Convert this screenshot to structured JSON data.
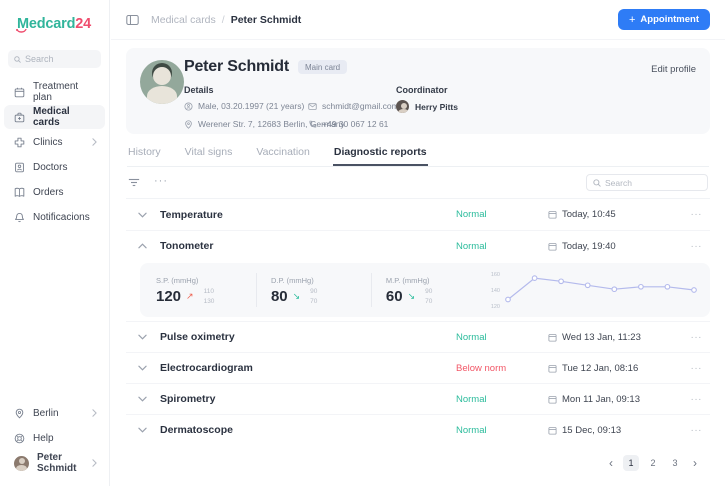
{
  "logo": {
    "m": "M",
    "mid": "edcard",
    "num": "24"
  },
  "sidebar": {
    "search_placeholder": "Search",
    "items": [
      {
        "label": "Treatment plan",
        "icon": "calendar-icon",
        "active": false,
        "has_chevron": false
      },
      {
        "label": "Medical cards",
        "icon": "medical-bag-icon",
        "active": true,
        "has_chevron": false
      },
      {
        "label": "Clinics",
        "icon": "clinic-cross-icon",
        "active": false,
        "has_chevron": true
      },
      {
        "label": "Doctors",
        "icon": "doctor-badge-icon",
        "active": false,
        "has_chevron": false
      },
      {
        "label": "Orders",
        "icon": "orders-book-icon",
        "active": false,
        "has_chevron": false
      },
      {
        "label": "Notificacions",
        "icon": "bell-icon",
        "active": false,
        "has_chevron": false
      }
    ],
    "footer_items": [
      {
        "label": "Berlin",
        "icon": "location-pin-icon",
        "has_chevron": true
      },
      {
        "label": "Help",
        "icon": "help-icon",
        "has_chevron": false
      },
      {
        "label": "Peter Schmidt",
        "icon": "user-avatar",
        "has_chevron": true
      }
    ]
  },
  "header": {
    "breadcrumb": [
      "Medical cards",
      "Peter Schmidt"
    ],
    "breadcrumb_separator": "/",
    "appointment_plus": "+",
    "appointment_label": "Appointment"
  },
  "patient": {
    "name": "Peter Schmidt",
    "badge": "Main card",
    "edit_label": "Edit profile",
    "details_label": "Details",
    "gender_dob": "Male, 03.20.1997 (21 years)",
    "email": "schmidt@gmail.com",
    "address": "Werener Str. 7, 12683 Berlin, Germany",
    "phone": "+49 30 067 12 61",
    "coordinator_label": "Coordinator",
    "coordinator_name": "Herry Pitts"
  },
  "tabs": [
    {
      "label": "History",
      "active": false
    },
    {
      "label": "Vital signs",
      "active": false
    },
    {
      "label": "Vaccination",
      "active": false
    },
    {
      "label": "Diagnostic reports",
      "active": true
    }
  ],
  "toolbar": {
    "search_placeholder": "Search"
  },
  "ui": {
    "ellipsis": "···",
    "prev": "‹",
    "next": "›"
  },
  "reports": [
    {
      "name": "Temperature",
      "status": "Normal",
      "status_type": "normal",
      "date": "Today, 10:45",
      "expanded": false
    },
    {
      "name": "Tonometer",
      "status": "Normal",
      "status_type": "normal",
      "date": "Today, 19:40",
      "expanded": true
    },
    {
      "name": "Pulse oximetry",
      "status": "Normal",
      "status_type": "normal",
      "date": "Wed 13 Jan, 11:23",
      "expanded": false
    },
    {
      "name": "Electrocardiogram",
      "status": "Below norm",
      "status_type": "alert",
      "date": "Tue 12 Jan, 08:16",
      "expanded": false
    },
    {
      "name": "Spirometry",
      "status": "Normal",
      "status_type": "normal",
      "date": "Mon 11 Jan, 09:13",
      "expanded": false
    },
    {
      "name": "Dermatoscope",
      "status": "Normal",
      "status_type": "normal",
      "date": "15 Dec, 09:13",
      "expanded": false
    }
  ],
  "tonometer_panel": {
    "metrics": [
      {
        "label": "S.P. (mmHg)",
        "value": "120",
        "trend": "up",
        "trend_glyph": "↗",
        "range_high": "110",
        "range_low": "130"
      },
      {
        "label": "D.P. (mmHg)",
        "value": "80",
        "trend": "down",
        "trend_glyph": "↘",
        "range_high": "90",
        "range_low": "70"
      },
      {
        "label": "M.P. (mmHg)",
        "value": "60",
        "trend": "down",
        "trend_glyph": "↘",
        "range_high": "90",
        "range_low": "70"
      }
    ]
  },
  "chart_data": {
    "type": "line",
    "series_name": "S.P. (mmHg) history",
    "x": [
      1,
      2,
      3,
      4,
      5,
      6,
      7,
      8
    ],
    "values": [
      128,
      155,
      151,
      146,
      141,
      144,
      144,
      140
    ],
    "yticks": [
      160,
      140,
      120
    ],
    "ylim": [
      116,
      164
    ],
    "grid": false,
    "line_color": "#b4baec",
    "marker": "open-circle"
  },
  "pagination": {
    "pages": [
      "1",
      "2",
      "3"
    ],
    "current": "1"
  },
  "colors": {
    "accent_blue": "#2e7cf6",
    "brand_teal": "#31b59b",
    "brand_red": "#ef4d6e",
    "status_normal": "#2cbc9c",
    "status_alert": "#f25767",
    "panel_bg": "#f7f8fa"
  }
}
